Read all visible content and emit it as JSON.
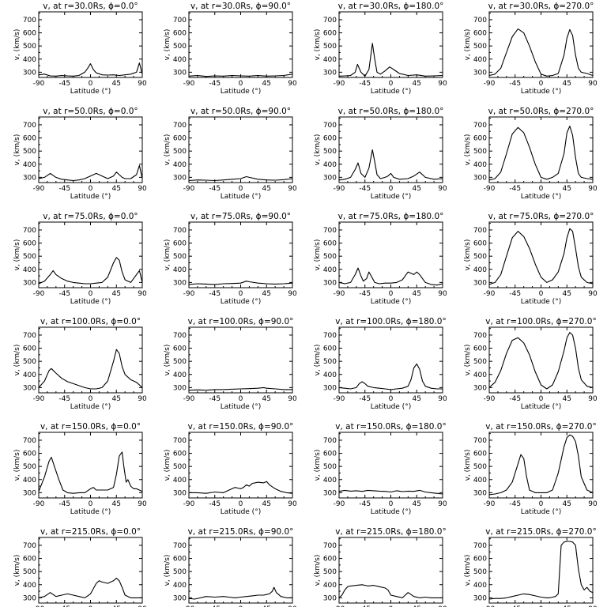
{
  "chart_data": [
    {
      "type": "line",
      "title": "v, at r=30.0Rs, ϕ=0.0°",
      "xlabel": "Latitude (°)",
      "ylabel": "v, (km/s)",
      "xlim": [
        -90,
        90
      ],
      "ylim": [
        260,
        760
      ],
      "x": [
        -90,
        -80,
        -70,
        -60,
        -50,
        -40,
        -30,
        -20,
        -10,
        -5,
        0,
        5,
        10,
        20,
        30,
        40,
        50,
        60,
        70,
        80,
        85,
        88,
        90
      ],
      "y": [
        280,
        285,
        272,
        270,
        275,
        272,
        270,
        275,
        300,
        330,
        365,
        320,
        295,
        280,
        278,
        280,
        275,
        280,
        285,
        300,
        370,
        320,
        285
      ]
    },
    {
      "type": "line",
      "title": "v, at r=30.0Rs, ϕ=90.0°",
      "xlabel": "Latitude (°)",
      "ylabel": "v, (km/s)",
      "xlim": [
        -90,
        90
      ],
      "ylim": [
        260,
        760
      ],
      "x": [
        -90,
        -75,
        -60,
        -45,
        -30,
        -15,
        0,
        15,
        30,
        45,
        60,
        75,
        90
      ],
      "y": [
        270,
        275,
        268,
        272,
        270,
        275,
        272,
        270,
        275,
        270,
        272,
        275,
        285
      ]
    },
    {
      "type": "line",
      "title": "v, at r=30.0Rs, ϕ=180.0°",
      "xlabel": "Latitude (°)",
      "ylabel": "v, (km/s)",
      "xlim": [
        -90,
        90
      ],
      "ylim": [
        260,
        760
      ],
      "x": [
        -90,
        -80,
        -70,
        -62,
        -58,
        -52,
        -45,
        -38,
        -32,
        -28,
        -24,
        -18,
        -10,
        -2,
        5,
        15,
        30,
        45,
        60,
        75,
        90
      ],
      "y": [
        270,
        272,
        275,
        300,
        360,
        300,
        270,
        320,
        520,
        400,
        300,
        285,
        310,
        340,
        320,
        290,
        275,
        280,
        270,
        272,
        275
      ]
    },
    {
      "type": "line",
      "title": "v, at r=30.0Rs, ϕ=270.0°",
      "xlabel": "Latitude (°)",
      "ylabel": "v, (km/s)",
      "xlim": [
        -90,
        90
      ],
      "ylim": [
        260,
        760
      ],
      "x": [
        -90,
        -80,
        -70,
        -60,
        -50,
        -40,
        -30,
        -20,
        -10,
        0,
        10,
        20,
        30,
        40,
        45,
        50,
        55,
        60,
        65,
        70,
        80,
        90
      ],
      "y": [
        275,
        285,
        330,
        450,
        570,
        630,
        600,
        500,
        380,
        285,
        270,
        275,
        290,
        430,
        560,
        625,
        580,
        430,
        330,
        300,
        290,
        275
      ]
    },
    {
      "type": "line",
      "title": "v, at r=50.0Rs, ϕ=0.0°",
      "xlabel": "Latitude (°)",
      "ylabel": "v, (km/s)",
      "xlim": [
        -90,
        90
      ],
      "ylim": [
        260,
        760
      ],
      "x": [
        -90,
        -80,
        -70,
        -60,
        -50,
        -40,
        -30,
        -20,
        -10,
        0,
        10,
        20,
        30,
        40,
        45,
        50,
        55,
        60,
        70,
        80,
        85,
        90
      ],
      "y": [
        290,
        300,
        330,
        300,
        285,
        280,
        275,
        280,
        290,
        310,
        330,
        310,
        290,
        310,
        340,
        320,
        300,
        290,
        290,
        320,
        390,
        290
      ]
    },
    {
      "type": "line",
      "title": "v, at r=50.0Rs, ϕ=90.0°",
      "xlabel": "Latitude (°)",
      "ylabel": "v, (km/s)",
      "xlim": [
        -90,
        90
      ],
      "ylim": [
        260,
        760
      ],
      "x": [
        -90,
        -75,
        -60,
        -45,
        -30,
        -15,
        0,
        10,
        15,
        30,
        45,
        60,
        75,
        90
      ],
      "y": [
        275,
        280,
        278,
        275,
        280,
        285,
        290,
        305,
        300,
        285,
        280,
        278,
        282,
        290
      ]
    },
    {
      "type": "line",
      "title": "v, at r=50.0Rs, ϕ=180.0°",
      "xlabel": "Latitude (°)",
      "ylabel": "v, (km/s)",
      "xlim": [
        -90,
        90
      ],
      "ylim": [
        260,
        760
      ],
      "x": [
        -90,
        -80,
        -70,
        -62,
        -57,
        -52,
        -45,
        -38,
        -32,
        -28,
        -24,
        -18,
        -10,
        -5,
        0,
        5,
        15,
        30,
        40,
        50,
        60,
        75,
        90
      ],
      "y": [
        280,
        285,
        300,
        360,
        410,
        330,
        300,
        370,
        510,
        420,
        320,
        290,
        300,
        310,
        330,
        300,
        285,
        290,
        310,
        340,
        300,
        285,
        290
      ]
    },
    {
      "type": "line",
      "title": "v, at r=50.0Rs, ϕ=270.0°",
      "xlabel": "Latitude (°)",
      "ylabel": "v, (km/s)",
      "xlim": [
        -90,
        90
      ],
      "ylim": [
        260,
        760
      ],
      "x": [
        -90,
        -80,
        -70,
        -60,
        -50,
        -40,
        -30,
        -20,
        -10,
        0,
        10,
        20,
        30,
        40,
        45,
        50,
        55,
        60,
        65,
        70,
        80,
        90
      ],
      "y": [
        280,
        290,
        340,
        480,
        630,
        680,
        640,
        530,
        400,
        300,
        285,
        300,
        330,
        480,
        640,
        690,
        620,
        450,
        330,
        300,
        290,
        285
      ]
    },
    {
      "type": "line",
      "title": "v, at r=75.0Rs, ϕ=0.0°",
      "xlabel": "Latitude (°)",
      "ylabel": "v, (km/s)",
      "xlim": [
        -90,
        90
      ],
      "ylim": [
        260,
        760
      ],
      "x": [
        -90,
        -80,
        -70,
        -65,
        -60,
        -50,
        -40,
        -30,
        -20,
        -10,
        0,
        10,
        20,
        30,
        40,
        45,
        50,
        55,
        60,
        70,
        80,
        85,
        90
      ],
      "y": [
        290,
        310,
        360,
        390,
        360,
        330,
        310,
        300,
        295,
        290,
        290,
        295,
        300,
        340,
        450,
        490,
        470,
        380,
        320,
        300,
        360,
        390,
        300
      ]
    },
    {
      "type": "line",
      "title": "v, at r=75.0Rs, ϕ=90.0°",
      "xlabel": "Latitude (°)",
      "ylabel": "v, (km/s)",
      "xlim": [
        -90,
        90
      ],
      "ylim": [
        260,
        760
      ],
      "x": [
        -90,
        -75,
        -60,
        -45,
        -30,
        -15,
        0,
        10,
        15,
        30,
        45,
        60,
        75,
        90
      ],
      "y": [
        285,
        290,
        288,
        285,
        290,
        292,
        295,
        310,
        305,
        295,
        290,
        288,
        290,
        295
      ]
    },
    {
      "type": "line",
      "title": "v, at r=75.0Rs, ϕ=180.0°",
      "xlabel": "Latitude (°)",
      "ylabel": "v, (km/s)",
      "xlim": [
        -90,
        90
      ],
      "ylim": [
        260,
        760
      ],
      "x": [
        -90,
        -80,
        -70,
        -62,
        -57,
        -52,
        -48,
        -42,
        -38,
        -33,
        -28,
        -20,
        -10,
        0,
        10,
        20,
        25,
        30,
        35,
        40,
        45,
        50,
        55,
        60,
        70,
        80,
        90
      ],
      "y": [
        300,
        290,
        300,
        360,
        410,
        350,
        310,
        330,
        380,
        340,
        300,
        290,
        295,
        295,
        300,
        320,
        350,
        380,
        370,
        360,
        380,
        360,
        330,
        300,
        285,
        280,
        290
      ]
    },
    {
      "type": "line",
      "title": "v, at r=75.0Rs, ϕ=270.0°",
      "xlabel": "Latitude (°)",
      "ylabel": "v, (km/s)",
      "xlim": [
        -90,
        90
      ],
      "ylim": [
        260,
        760
      ],
      "x": [
        -90,
        -80,
        -70,
        -60,
        -50,
        -40,
        -30,
        -20,
        -10,
        0,
        10,
        20,
        30,
        40,
        45,
        50,
        55,
        60,
        65,
        70,
        80,
        90
      ],
      "y": [
        285,
        300,
        360,
        500,
        640,
        690,
        650,
        560,
        440,
        340,
        300,
        320,
        380,
        520,
        640,
        710,
        690,
        560,
        420,
        340,
        300,
        290
      ]
    },
    {
      "type": "line",
      "title": "v, at r=100.0Rs, ϕ=0.0°",
      "xlabel": "Latitude (°)",
      "ylabel": "v, (km/s)",
      "xlim": [
        -90,
        90
      ],
      "ylim": [
        260,
        760
      ],
      "x": [
        -90,
        -80,
        -72,
        -68,
        -60,
        -50,
        -40,
        -30,
        -20,
        -10,
        0,
        10,
        20,
        30,
        40,
        45,
        50,
        55,
        60,
        70,
        80,
        90
      ],
      "y": [
        300,
        350,
        430,
        445,
        410,
        370,
        345,
        330,
        315,
        300,
        290,
        290,
        300,
        350,
        500,
        590,
        560,
        460,
        400,
        360,
        340,
        300
      ]
    },
    {
      "type": "line",
      "title": "v, at r=100.0Rs, ϕ=90.0°",
      "xlabel": "Latitude (°)",
      "ylabel": "v, (km/s)",
      "xlim": [
        -90,
        90
      ],
      "ylim": [
        260,
        760
      ],
      "x": [
        -90,
        -75,
        -60,
        -45,
        -30,
        -15,
        0,
        15,
        30,
        40,
        45,
        60,
        75,
        90
      ],
      "y": [
        280,
        282,
        280,
        285,
        285,
        288,
        290,
        292,
        295,
        300,
        295,
        290,
        285,
        285
      ]
    },
    {
      "type": "line",
      "title": "v, at r=100.0Rs, ϕ=180.0°",
      "xlabel": "Latitude (°)",
      "ylabel": "v, (km/s)",
      "xlim": [
        -90,
        90
      ],
      "ylim": [
        260,
        760
      ],
      "x": [
        -90,
        -80,
        -70,
        -60,
        -55,
        -50,
        -45,
        -40,
        -30,
        -20,
        -10,
        0,
        10,
        20,
        30,
        35,
        40,
        45,
        50,
        55,
        60,
        70,
        80,
        90
      ],
      "y": [
        300,
        295,
        290,
        300,
        330,
        345,
        330,
        310,
        300,
        295,
        290,
        285,
        290,
        295,
        310,
        360,
        450,
        480,
        440,
        350,
        310,
        295,
        290,
        290
      ]
    },
    {
      "type": "line",
      "title": "v, at r=100.0Rs, ϕ=270.0°",
      "xlabel": "Latitude (°)",
      "ylabel": "v, (km/s)",
      "xlim": [
        -90,
        90
      ],
      "ylim": [
        260,
        760
      ],
      "x": [
        -90,
        -80,
        -70,
        -60,
        -50,
        -40,
        -30,
        -20,
        -10,
        0,
        10,
        20,
        30,
        40,
        45,
        50,
        55,
        60,
        65,
        70,
        80,
        90
      ],
      "y": [
        300,
        340,
        430,
        560,
        660,
        680,
        640,
        550,
        420,
        320,
        290,
        320,
        420,
        580,
        680,
        720,
        700,
        600,
        450,
        360,
        310,
        300
      ]
    },
    {
      "type": "line",
      "title": "v, at r=150.0Rs, ϕ=0.0°",
      "xlabel": "Latitude (°)",
      "ylabel": "v, (km/s)",
      "xlim": [
        -90,
        90
      ],
      "ylim": [
        260,
        760
      ],
      "x": [
        -90,
        -80,
        -72,
        -68,
        -62,
        -55,
        -48,
        -40,
        -30,
        -20,
        -10,
        0,
        5,
        10,
        20,
        30,
        40,
        45,
        50,
        55,
        58,
        62,
        65,
        70,
        75,
        80,
        90
      ],
      "y": [
        310,
        420,
        540,
        570,
        490,
        400,
        320,
        300,
        295,
        300,
        300,
        330,
        340,
        320,
        320,
        320,
        340,
        440,
        580,
        610,
        500,
        380,
        400,
        350,
        330,
        330,
        310
      ]
    },
    {
      "type": "line",
      "title": "v, at r=150.0Rs, ϕ=90.0°",
      "xlabel": "Latitude (°)",
      "ylabel": "v, (km/s)",
      "xlim": [
        -90,
        90
      ],
      "ylim": [
        260,
        760
      ],
      "x": [
        -90,
        -75,
        -60,
        -45,
        -30,
        -20,
        -10,
        0,
        5,
        10,
        15,
        20,
        30,
        40,
        45,
        50,
        60,
        70,
        80,
        90
      ],
      "y": [
        300,
        300,
        295,
        305,
        300,
        320,
        340,
        330,
        340,
        360,
        350,
        370,
        380,
        375,
        385,
        360,
        330,
        310,
        300,
        295
      ]
    },
    {
      "type": "line",
      "title": "v, at r=150.0Rs, ϕ=180.0°",
      "xlabel": "Latitude (°)",
      "ylabel": "v, (km/s)",
      "xlim": [
        -90,
        90
      ],
      "ylim": [
        260,
        760
      ],
      "x": [
        -90,
        -80,
        -70,
        -60,
        -50,
        -40,
        -30,
        -20,
        -10,
        0,
        10,
        20,
        30,
        40,
        50,
        60,
        70,
        80,
        90
      ],
      "y": [
        310,
        318,
        312,
        315,
        310,
        318,
        315,
        312,
        310,
        305,
        315,
        308,
        312,
        310,
        318,
        305,
        300,
        295,
        290
      ]
    },
    {
      "type": "line",
      "title": "v, at r=150.0Rs, ϕ=270.0°",
      "xlabel": "Latitude (°)",
      "ylabel": "v, (km/s)",
      "xlim": [
        -90,
        90
      ],
      "ylim": [
        260,
        760
      ],
      "x": [
        -90,
        -80,
        -70,
        -60,
        -50,
        -40,
        -35,
        -30,
        -25,
        -20,
        -10,
        0,
        10,
        20,
        30,
        40,
        45,
        50,
        55,
        60,
        65,
        70,
        80,
        90
      ],
      "y": [
        285,
        290,
        300,
        320,
        380,
        520,
        590,
        560,
        420,
        320,
        300,
        300,
        300,
        320,
        450,
        650,
        720,
        740,
        730,
        690,
        580,
        420,
        320,
        300
      ]
    },
    {
      "type": "line",
      "title": "v, at r=215.0Rs, ϕ=0.0°",
      "xlabel": "Latitude (°)",
      "ylabel": "v, (km/s)",
      "xlim": [
        -90,
        90
      ],
      "ylim": [
        260,
        760
      ],
      "x": [
        -90,
        -80,
        -70,
        -60,
        -50,
        -40,
        -30,
        -20,
        -10,
        0,
        10,
        15,
        20,
        30,
        40,
        45,
        50,
        55,
        60,
        70,
        80,
        90
      ],
      "y": [
        300,
        310,
        340,
        310,
        320,
        330,
        320,
        310,
        300,
        330,
        410,
        430,
        420,
        410,
        430,
        450,
        430,
        380,
        320,
        300,
        300,
        300
      ]
    },
    {
      "type": "line",
      "title": "v, at r=215.0Rs, ϕ=90.0°",
      "xlabel": "Latitude (°)",
      "ylabel": "v, (km/s)",
      "xlim": [
        -90,
        90
      ],
      "ylim": [
        260,
        760
      ],
      "x": [
        -90,
        -80,
        -70,
        -60,
        -45,
        -30,
        -20,
        -10,
        0,
        10,
        20,
        30,
        40,
        45,
        50,
        55,
        58,
        62,
        70,
        80,
        90
      ],
      "y": [
        295,
        290,
        300,
        310,
        305,
        310,
        305,
        300,
        305,
        310,
        315,
        320,
        320,
        325,
        330,
        350,
        380,
        340,
        310,
        300,
        300
      ]
    },
    {
      "type": "line",
      "title": "v, at r=215.0Rs, ϕ=180.0°",
      "xlabel": "Latitude (°)",
      "ylabel": "v, (km/s)",
      "xlim": [
        -90,
        90
      ],
      "ylim": [
        260,
        760
      ],
      "x": [
        -90,
        -85,
        -80,
        -75,
        -70,
        -60,
        -50,
        -40,
        -30,
        -20,
        -10,
        -5,
        0,
        10,
        20,
        25,
        30,
        40,
        50,
        60,
        70,
        80,
        90
      ],
      "y": [
        300,
        320,
        360,
        385,
        390,
        395,
        400,
        390,
        395,
        385,
        375,
        360,
        320,
        310,
        300,
        320,
        340,
        310,
        300,
        305,
        300,
        300,
        300
      ]
    },
    {
      "type": "line",
      "title": "v, at r=215.0Rs, ϕ=270.0°",
      "xlabel": "Latitude (°)",
      "ylabel": "v, (km/s)",
      "xlim": [
        -90,
        90
      ],
      "ylim": [
        260,
        760
      ],
      "x": [
        -90,
        -80,
        -70,
        -60,
        -50,
        -40,
        -30,
        -20,
        -10,
        0,
        10,
        15,
        20,
        25,
        30,
        35,
        40,
        45,
        50,
        55,
        60,
        65,
        70,
        75,
        80,
        85,
        90
      ],
      "y": [
        290,
        295,
        295,
        300,
        310,
        320,
        330,
        325,
        315,
        305,
        300,
        300,
        305,
        310,
        330,
        700,
        725,
        730,
        730,
        725,
        700,
        520,
        400,
        360,
        380,
        350,
        340
      ]
    }
  ],
  "tick_labels": {
    "x": [
      "-90",
      "-45",
      "0",
      "45",
      "90"
    ],
    "y": [
      "300",
      "400",
      "500",
      "600",
      "700"
    ]
  }
}
